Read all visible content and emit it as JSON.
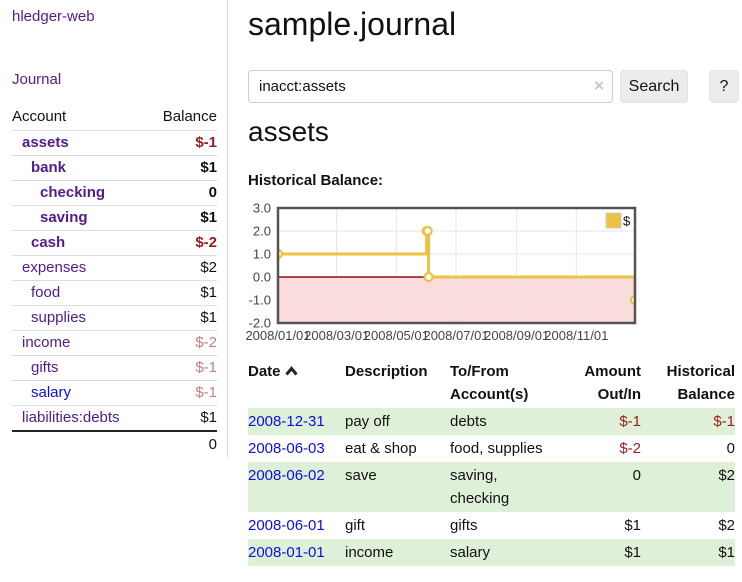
{
  "app": {
    "title": "hledger-web"
  },
  "sidebar": {
    "journal_link": "Journal",
    "col_account": "Account",
    "col_balance": "Balance",
    "accounts": [
      {
        "name": "assets",
        "depth": 1,
        "bold": true,
        "link_color": "purple",
        "balance": "$-1",
        "balance_color": "red"
      },
      {
        "name": "bank",
        "depth": 2,
        "bold": true,
        "link_color": "purple",
        "balance": "$1",
        "balance_color": "black"
      },
      {
        "name": "checking",
        "depth": 3,
        "bold": true,
        "link_color": "purple",
        "balance": "0",
        "balance_color": "black"
      },
      {
        "name": "saving",
        "depth": 3,
        "bold": true,
        "link_color": "purple",
        "balance": "$1",
        "balance_color": "black"
      },
      {
        "name": "cash",
        "depth": 2,
        "bold": true,
        "link_color": "purple",
        "balance": "$-2",
        "balance_color": "red"
      },
      {
        "name": "expenses",
        "depth": 1,
        "bold": false,
        "link_color": "purple",
        "balance": "$2",
        "balance_color": "black"
      },
      {
        "name": "food",
        "depth": 2,
        "bold": false,
        "link_color": "purple",
        "balance": "$1",
        "balance_color": "black"
      },
      {
        "name": "supplies",
        "depth": 2,
        "bold": false,
        "link_color": "purple",
        "balance": "$1",
        "balance_color": "black"
      },
      {
        "name": "income",
        "depth": 1,
        "bold": false,
        "link_color": "purple",
        "balance": "$-2",
        "balance_color": "rose"
      },
      {
        "name": "gifts",
        "depth": 2,
        "bold": false,
        "link_color": "purple",
        "balance": "$-1",
        "balance_color": "rose"
      },
      {
        "name": "salary",
        "depth": 2,
        "bold": false,
        "link_color": "blue",
        "balance": "$-1",
        "balance_color": "rose"
      },
      {
        "name": "liabilities:debts",
        "depth": 1,
        "bold": false,
        "link_color": "purple",
        "balance": "$1",
        "balance_color": "black"
      }
    ],
    "total": "0"
  },
  "main": {
    "title": "sample.journal",
    "account_heading": "assets",
    "chart_label": "Historical Balance:"
  },
  "search": {
    "value": "inacct:assets",
    "clear_icon": "×",
    "button": "Search",
    "help_button": "?"
  },
  "chart_data": {
    "type": "line",
    "title": "Historical Balance:",
    "step": true,
    "series": [
      {
        "name": "$",
        "color": "#edc240",
        "points": [
          [
            "2008-01-01",
            1
          ],
          [
            "2008-06-01",
            2
          ],
          [
            "2008-06-02",
            2
          ],
          [
            "2008-06-03",
            0
          ],
          [
            "2008-12-31",
            -1
          ]
        ]
      }
    ],
    "x_ticks": [
      "2008/01/01",
      "2008/03/01",
      "2008/05/01",
      "2008/07/01",
      "2008/09/01",
      "2008/11/01"
    ],
    "y_ticks": [
      3.0,
      2.0,
      1.0,
      0.0,
      -1.0,
      -2.0
    ],
    "xlim": [
      "2008-01-01",
      "2008-12-31"
    ],
    "ylim": [
      -2,
      3
    ],
    "grid": true,
    "legend_position": "top-right",
    "negative_region_color": "#fbdcdc",
    "zero_line_color": "#8f1010",
    "border_color": "#545454",
    "grid_color": "#e6e6e6"
  },
  "transactions": {
    "headers": {
      "date": "Date",
      "description": "Description",
      "accounts": "To/From Account(s)",
      "amount": "Amount Out/In",
      "balance": "Historical Balance"
    },
    "rows": [
      {
        "date": "2008-12-31",
        "description": "pay off",
        "accounts": "debts",
        "amount": "$-1",
        "amount_color": "red",
        "balance": "$-1",
        "balance_color": "red"
      },
      {
        "date": "2008-06-03",
        "description": "eat & shop",
        "accounts": "food, supplies",
        "amount": "$-2",
        "amount_color": "red",
        "balance": "0",
        "balance_color": "black"
      },
      {
        "date": "2008-06-02",
        "description": "save",
        "accounts": "saving, checking",
        "amount": "0",
        "amount_color": "black",
        "balance": "$2",
        "balance_color": "black"
      },
      {
        "date": "2008-06-01",
        "description": "gift",
        "accounts": "gifts",
        "amount": "$1",
        "amount_color": "black",
        "balance": "$2",
        "balance_color": "black"
      },
      {
        "date": "2008-01-01",
        "description": "income",
        "accounts": "salary",
        "amount": "$1",
        "amount_color": "black",
        "balance": "$1",
        "balance_color": "black"
      }
    ]
  },
  "colors": {
    "link_purple": "#551a8b",
    "link_blue": "#0d0de0",
    "negative_red": "#9b1c1c",
    "negative_rose": "#c67f7f",
    "row_stripe_green": "#dff0d8",
    "series_gold": "#edc240"
  }
}
